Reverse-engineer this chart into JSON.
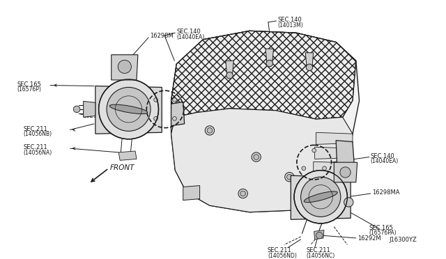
{
  "background_color": "#ffffff",
  "line_color": "#1a1a1a",
  "diagram_code": "J16300YZ",
  "labels": {
    "top_left_part": "16298M",
    "top_left_sec1": "SEC.165",
    "top_left_sec1_sub": "(16576P)",
    "top_left_part2": "16292M",
    "top_left_sec2": "SEC.211",
    "top_left_sec2_sub": "(14056NB)",
    "top_left_sec3": "SEC.211",
    "top_left_sec3_sub": "(14056NA)",
    "top_center_sec1": "SEC.140",
    "top_center_sec1_sub": "(14040EA)",
    "top_right_sec1": "SEC.140",
    "top_right_sec1_sub": "(14013M)",
    "right_sec1": "SEC.140",
    "right_sec1_sub": "(14040EA)",
    "right_part": "16298MA",
    "bottom_right_sec1": "SEC.165",
    "bottom_right_sec1_sub": "(16576PA)",
    "bottom_right_part": "16292M",
    "bottom_sec1": "SEC.211",
    "bottom_sec1_sub": "(14056ND)",
    "bottom_sec2": "SEC.211",
    "bottom_sec2_sub": "(14056NC)",
    "front_label": "FRONT"
  },
  "figsize": [
    6.4,
    3.72
  ],
  "dpi": 100
}
